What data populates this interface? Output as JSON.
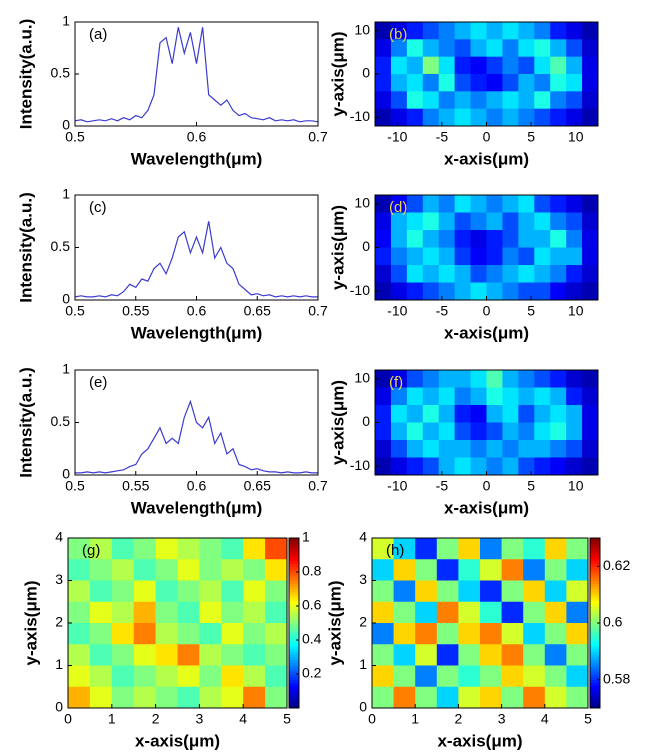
{
  "chart_data": [
    {
      "type": "line",
      "panel_label": "(a)",
      "panel_label_color": "#000000",
      "xlabel": "Wavelength(μm)",
      "ylabel": "Intensity(a.u.)",
      "color": "#3b3bd0",
      "x": [
        0.5,
        0.505,
        0.51,
        0.515,
        0.52,
        0.525,
        0.53,
        0.535,
        0.54,
        0.545,
        0.55,
        0.555,
        0.56,
        0.565,
        0.57,
        0.575,
        0.58,
        0.585,
        0.59,
        0.595,
        0.6,
        0.605,
        0.61,
        0.615,
        0.62,
        0.625,
        0.63,
        0.635,
        0.64,
        0.645,
        0.65,
        0.655,
        0.66,
        0.665,
        0.67,
        0.675,
        0.68,
        0.685,
        0.69,
        0.695,
        0.7
      ],
      "values": [
        0.05,
        0.06,
        0.04,
        0.05,
        0.06,
        0.05,
        0.07,
        0.05,
        0.08,
        0.06,
        0.1,
        0.08,
        0.15,
        0.3,
        0.8,
        0.85,
        0.6,
        0.95,
        0.7,
        0.9,
        0.6,
        0.95,
        0.3,
        0.25,
        0.2,
        0.25,
        0.15,
        0.1,
        0.12,
        0.08,
        0.07,
        0.06,
        0.08,
        0.05,
        0.06,
        0.05,
        0.06,
        0.04,
        0.05,
        0.05,
        0.04
      ],
      "xlim": [
        0.5,
        0.7
      ],
      "ylim": [
        0,
        1
      ],
      "xticks": [
        0.5,
        0.6,
        0.7
      ],
      "yticks": [
        0,
        0.5,
        1
      ]
    },
    {
      "type": "heatmap",
      "panel_label": "(b)",
      "panel_label_color": "#e8d84a",
      "xlabel": "x-axis(μm)",
      "ylabel": "y-axis(μm)",
      "colormap": "jet",
      "z": [
        [
          0.05,
          0.1,
          0.15,
          0.2,
          0.25,
          0.3,
          0.35,
          0.3,
          0.35,
          0.3,
          0.25,
          0.15,
          0.1,
          0.05
        ],
        [
          0.1,
          0.25,
          0.4,
          0.3,
          0.25,
          0.2,
          0.3,
          0.35,
          0.25,
          0.35,
          0.4,
          0.3,
          0.2,
          0.08
        ],
        [
          0.15,
          0.35,
          0.3,
          0.5,
          0.35,
          0.15,
          0.12,
          0.18,
          0.25,
          0.2,
          0.35,
          0.45,
          0.3,
          0.1
        ],
        [
          0.15,
          0.3,
          0.35,
          0.25,
          0.4,
          0.2,
          0.15,
          0.12,
          0.2,
          0.3,
          0.25,
          0.4,
          0.35,
          0.1
        ],
        [
          0.1,
          0.2,
          0.4,
          0.35,
          0.25,
          0.3,
          0.25,
          0.3,
          0.35,
          0.3,
          0.4,
          0.25,
          0.2,
          0.08
        ],
        [
          0.05,
          0.1,
          0.15,
          0.25,
          0.3,
          0.35,
          0.3,
          0.25,
          0.3,
          0.25,
          0.2,
          0.15,
          0.1,
          0.05
        ]
      ],
      "zlim": [
        0,
        1
      ],
      "xlim": [
        -12.5,
        12.5
      ],
      "ylim": [
        -12,
        12
      ],
      "xticks": [
        -10,
        -5,
        0,
        5,
        10
      ],
      "yticks": [
        -10,
        0,
        10
      ]
    },
    {
      "type": "line",
      "panel_label": "(c)",
      "panel_label_color": "#000000",
      "xlabel": "Wavelength(μm)",
      "ylabel": "Intensity(a.u.)",
      "color": "#3b3bd0",
      "x": [
        0.5,
        0.505,
        0.51,
        0.515,
        0.52,
        0.525,
        0.53,
        0.535,
        0.54,
        0.545,
        0.55,
        0.555,
        0.56,
        0.565,
        0.57,
        0.575,
        0.58,
        0.585,
        0.59,
        0.595,
        0.6,
        0.605,
        0.61,
        0.615,
        0.62,
        0.625,
        0.63,
        0.635,
        0.64,
        0.645,
        0.65,
        0.655,
        0.66,
        0.665,
        0.67,
        0.675,
        0.68,
        0.685,
        0.69,
        0.695,
        0.7
      ],
      "values": [
        0.03,
        0.04,
        0.03,
        0.03,
        0.04,
        0.03,
        0.05,
        0.04,
        0.08,
        0.15,
        0.12,
        0.2,
        0.18,
        0.3,
        0.35,
        0.25,
        0.4,
        0.6,
        0.65,
        0.45,
        0.6,
        0.45,
        0.75,
        0.4,
        0.5,
        0.35,
        0.3,
        0.15,
        0.1,
        0.05,
        0.06,
        0.04,
        0.05,
        0.03,
        0.04,
        0.03,
        0.04,
        0.03,
        0.04,
        0.03,
        0.03
      ],
      "xlim": [
        0.5,
        0.7
      ],
      "ylim": [
        0,
        1
      ],
      "xticks": [
        0.5,
        0.55,
        0.6,
        0.65,
        0.7
      ],
      "yticks": [
        0,
        0.5,
        1
      ]
    },
    {
      "type": "heatmap",
      "panel_label": "(d)",
      "panel_label_color": "#e8d84a",
      "xlabel": "x-axis(μm)",
      "ylabel": "y-axis(μm)",
      "colormap": "jet",
      "z": [
        [
          0.05,
          0.12,
          0.2,
          0.3,
          0.25,
          0.35,
          0.3,
          0.25,
          0.3,
          0.35,
          0.2,
          0.15,
          0.1,
          0.05
        ],
        [
          0.1,
          0.3,
          0.35,
          0.4,
          0.3,
          0.2,
          0.25,
          0.3,
          0.2,
          0.3,
          0.35,
          0.25,
          0.2,
          0.08
        ],
        [
          0.12,
          0.3,
          0.4,
          0.3,
          0.25,
          0.15,
          0.1,
          0.15,
          0.2,
          0.3,
          0.3,
          0.4,
          0.25,
          0.1
        ],
        [
          0.15,
          0.25,
          0.3,
          0.35,
          0.3,
          0.18,
          0.12,
          0.15,
          0.25,
          0.2,
          0.35,
          0.3,
          0.3,
          0.1
        ],
        [
          0.08,
          0.2,
          0.35,
          0.3,
          0.35,
          0.3,
          0.2,
          0.25,
          0.3,
          0.35,
          0.3,
          0.25,
          0.15,
          0.08
        ],
        [
          0.05,
          0.1,
          0.15,
          0.2,
          0.25,
          0.3,
          0.35,
          0.3,
          0.25,
          0.2,
          0.2,
          0.12,
          0.08,
          0.05
        ]
      ],
      "zlim": [
        0,
        1
      ],
      "xlim": [
        -12.5,
        12.5
      ],
      "ylim": [
        -12,
        12
      ],
      "xticks": [
        -10,
        -5,
        0,
        5,
        10
      ],
      "yticks": [
        -10,
        0,
        10
      ]
    },
    {
      "type": "line",
      "panel_label": "(e)",
      "panel_label_color": "#000000",
      "xlabel": "Wavelength(μm)",
      "ylabel": "Intensity(a.u.)",
      "color": "#3b3bd0",
      "x": [
        0.5,
        0.505,
        0.51,
        0.515,
        0.52,
        0.525,
        0.53,
        0.535,
        0.54,
        0.545,
        0.55,
        0.555,
        0.56,
        0.565,
        0.57,
        0.575,
        0.58,
        0.585,
        0.59,
        0.595,
        0.6,
        0.605,
        0.61,
        0.615,
        0.62,
        0.625,
        0.63,
        0.635,
        0.64,
        0.645,
        0.65,
        0.655,
        0.66,
        0.665,
        0.67,
        0.675,
        0.68,
        0.685,
        0.69,
        0.695,
        0.7
      ],
      "values": [
        0.02,
        0.02,
        0.03,
        0.02,
        0.03,
        0.02,
        0.03,
        0.04,
        0.05,
        0.08,
        0.1,
        0.2,
        0.25,
        0.35,
        0.45,
        0.3,
        0.35,
        0.3,
        0.55,
        0.7,
        0.5,
        0.45,
        0.55,
        0.3,
        0.4,
        0.2,
        0.25,
        0.1,
        0.08,
        0.05,
        0.06,
        0.04,
        0.03,
        0.03,
        0.02,
        0.03,
        0.02,
        0.02,
        0.03,
        0.02,
        0.02
      ],
      "xlim": [
        0.5,
        0.7
      ],
      "ylim": [
        0,
        1
      ],
      "xticks": [
        0.5,
        0.55,
        0.6,
        0.65,
        0.7
      ],
      "yticks": [
        0,
        0.5,
        1
      ]
    },
    {
      "type": "heatmap",
      "panel_label": "(f)",
      "panel_label_color": "#e8d84a",
      "xlabel": "x-axis(μm)",
      "ylabel": "y-axis(μm)",
      "colormap": "jet",
      "z": [
        [
          0.05,
          0.1,
          0.2,
          0.25,
          0.3,
          0.3,
          0.35,
          0.45,
          0.3,
          0.25,
          0.2,
          0.15,
          0.08,
          0.05
        ],
        [
          0.1,
          0.25,
          0.35,
          0.3,
          0.35,
          0.25,
          0.3,
          0.4,
          0.35,
          0.3,
          0.35,
          0.3,
          0.15,
          0.08
        ],
        [
          0.15,
          0.35,
          0.3,
          0.4,
          0.3,
          0.15,
          0.12,
          0.3,
          0.35,
          0.2,
          0.3,
          0.35,
          0.3,
          0.1
        ],
        [
          0.15,
          0.3,
          0.4,
          0.3,
          0.35,
          0.2,
          0.15,
          0.2,
          0.3,
          0.25,
          0.35,
          0.4,
          0.3,
          0.1
        ],
        [
          0.08,
          0.2,
          0.3,
          0.35,
          0.3,
          0.3,
          0.25,
          0.3,
          0.25,
          0.3,
          0.3,
          0.25,
          0.2,
          0.08
        ],
        [
          0.05,
          0.1,
          0.15,
          0.2,
          0.3,
          0.35,
          0.3,
          0.25,
          0.3,
          0.2,
          0.15,
          0.12,
          0.08,
          0.05
        ]
      ],
      "zlim": [
        0,
        1
      ],
      "xlim": [
        -12.5,
        12.5
      ],
      "ylim": [
        -12,
        12
      ],
      "xticks": [
        -10,
        -5,
        0,
        5,
        10
      ],
      "yticks": [
        -10,
        0,
        10
      ]
    },
    {
      "type": "heatmap",
      "panel_label": "(g)",
      "panel_label_color": "#000000",
      "xlabel": "x-axis(μm)",
      "ylabel": "y-axis(μm)",
      "colormap": "jet",
      "z": [
        [
          0.5,
          0.55,
          0.45,
          0.5,
          0.6,
          0.55,
          0.5,
          0.45,
          0.65,
          0.8
        ],
        [
          0.45,
          0.5,
          0.55,
          0.45,
          0.5,
          0.6,
          0.5,
          0.55,
          0.5,
          0.65
        ],
        [
          0.55,
          0.45,
          0.5,
          0.6,
          0.45,
          0.5,
          0.55,
          0.45,
          0.6,
          0.5
        ],
        [
          0.5,
          0.6,
          0.55,
          0.7,
          0.5,
          0.45,
          0.6,
          0.5,
          0.55,
          0.45
        ],
        [
          0.45,
          0.5,
          0.65,
          0.75,
          0.55,
          0.5,
          0.45,
          0.6,
          0.5,
          0.55
        ],
        [
          0.55,
          0.45,
          0.5,
          0.6,
          0.65,
          0.75,
          0.55,
          0.5,
          0.45,
          0.5
        ],
        [
          0.6,
          0.55,
          0.45,
          0.5,
          0.55,
          0.6,
          0.5,
          0.65,
          0.55,
          0.45
        ],
        [
          0.7,
          0.6,
          0.5,
          0.55,
          0.5,
          0.45,
          0.55,
          0.6,
          0.75,
          0.5
        ]
      ],
      "zlim": [
        0,
        1
      ],
      "zticks": [
        0.2,
        0.4,
        0.6,
        0.8,
        1
      ],
      "xlim": [
        0,
        5
      ],
      "ylim": [
        0,
        4
      ],
      "xticks": [
        0,
        1,
        2,
        3,
        4,
        5
      ],
      "yticks": [
        0,
        1,
        2,
        3,
        4
      ]
    },
    {
      "type": "heatmap",
      "panel_label": "(h)",
      "panel_label_color": "#000000",
      "xlabel": "x-axis(μm)",
      "ylabel": "y-axis(μm)",
      "colormap": "jet",
      "z": [
        [
          0.605,
          0.59,
          0.58,
          0.6,
          0.61,
          0.585,
          0.6,
          0.595,
          0.61,
          0.6
        ],
        [
          0.59,
          0.61,
          0.6,
          0.58,
          0.595,
          0.605,
          0.615,
          0.585,
          0.6,
          0.59
        ],
        [
          0.6,
          0.585,
          0.61,
          0.6,
          0.59,
          0.58,
          0.6,
          0.61,
          0.59,
          0.605
        ],
        [
          0.61,
          0.6,
          0.59,
          0.615,
          0.605,
          0.595,
          0.58,
          0.6,
          0.61,
          0.585
        ],
        [
          0.585,
          0.61,
          0.615,
          0.6,
          0.61,
          0.615,
          0.605,
          0.59,
          0.6,
          0.61
        ],
        [
          0.6,
          0.59,
          0.605,
          0.58,
          0.6,
          0.61,
          0.615,
          0.6,
          0.585,
          0.6
        ],
        [
          0.61,
          0.6,
          0.585,
          0.6,
          0.595,
          0.6,
          0.61,
          0.605,
          0.6,
          0.59
        ],
        [
          0.6,
          0.615,
          0.6,
          0.59,
          0.605,
          0.61,
          0.6,
          0.615,
          0.605,
          0.6
        ]
      ],
      "zlim": [
        0.57,
        0.63
      ],
      "zticks": [
        0.58,
        0.6,
        0.62
      ],
      "xlim": [
        0,
        5
      ],
      "ylim": [
        0,
        4
      ],
      "xticks": [
        0,
        1,
        2,
        3,
        4,
        5
      ],
      "yticks": [
        0,
        1,
        2,
        3,
        4
      ]
    }
  ]
}
